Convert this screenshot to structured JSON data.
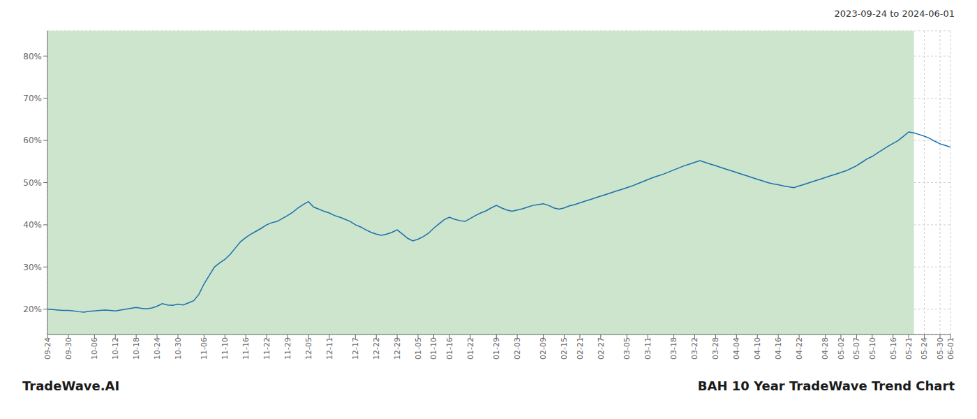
{
  "chart_data": {
    "type": "line",
    "title": "BAH 10 Year TradeWave Trend Chart",
    "subtitle": "2023-09-24 to 2024-06-01",
    "annotations": [
      "TradeWave.AI"
    ],
    "color": "#1a6faf",
    "grid": true,
    "shaded_region": {
      "start": 0,
      "end": 166,
      "color": "#cce5cc"
    },
    "ylim": [
      0.14,
      0.86
    ],
    "yticks": [
      {
        "value": 0.2,
        "label": "20%"
      },
      {
        "value": 0.3,
        "label": "30%"
      },
      {
        "value": 0.4,
        "label": "40%"
      },
      {
        "value": 0.5,
        "label": "50%"
      },
      {
        "value": 0.6,
        "label": "60%"
      },
      {
        "value": 0.7,
        "label": "70%"
      },
      {
        "value": 0.8,
        "label": "80%"
      }
    ],
    "categories": [
      "09-24",
      null,
      null,
      null,
      "09-30",
      null,
      null,
      null,
      null,
      "10-06",
      null,
      null,
      null,
      "10-12",
      null,
      null,
      null,
      "10-18",
      null,
      null,
      null,
      "10-24",
      null,
      null,
      null,
      "10-30",
      null,
      null,
      null,
      null,
      "11-06",
      null,
      null,
      null,
      "11-10",
      null,
      null,
      null,
      "11-16",
      null,
      null,
      null,
      "11-22",
      null,
      null,
      null,
      "11-29",
      null,
      null,
      null,
      "12-05",
      null,
      null,
      null,
      "12-11",
      null,
      null,
      null,
      null,
      "12-17",
      null,
      null,
      null,
      "12-22",
      null,
      null,
      null,
      "12-29",
      null,
      null,
      null,
      "01-05",
      null,
      null,
      "01-10",
      null,
      null,
      "01-16",
      null,
      null,
      null,
      "01-22",
      null,
      null,
      null,
      null,
      "01-29",
      null,
      null,
      null,
      "02-03",
      null,
      null,
      null,
      null,
      "02-09",
      null,
      null,
      null,
      "02-15",
      null,
      null,
      "02-21",
      null,
      null,
      null,
      "02-27",
      null,
      null,
      null,
      null,
      "03-05",
      null,
      null,
      null,
      "03-11",
      null,
      null,
      null,
      null,
      "03-18",
      null,
      null,
      null,
      "03-22",
      null,
      null,
      null,
      "03-28",
      null,
      null,
      null,
      "04-04",
      null,
      null,
      null,
      "04-10",
      null,
      null,
      null,
      "04-16",
      null,
      null,
      null,
      "04-22",
      null,
      null,
      null,
      null,
      "04-28",
      null,
      null,
      "05-02",
      null,
      null,
      "05-07",
      null,
      null,
      "05-10",
      null,
      null,
      null,
      "05-16",
      null,
      null,
      "05-21",
      null,
      null,
      "05-24",
      null,
      null,
      "05-30",
      null,
      "06-01"
    ],
    "values": [
      0.2,
      0.199,
      0.198,
      0.197,
      0.197,
      0.196,
      0.194,
      0.193,
      0.195,
      0.196,
      0.197,
      0.198,
      0.197,
      0.196,
      0.198,
      0.2,
      0.202,
      0.204,
      0.202,
      0.201,
      0.203,
      0.207,
      0.213,
      0.21,
      0.209,
      0.212,
      0.21,
      0.215,
      0.22,
      0.235,
      0.26,
      0.28,
      0.3,
      0.31,
      0.318,
      0.33,
      0.345,
      0.36,
      0.37,
      0.378,
      0.385,
      0.392,
      0.4,
      0.405,
      0.408,
      0.415,
      0.422,
      0.43,
      0.44,
      0.448,
      0.455,
      0.442,
      0.437,
      0.432,
      0.428,
      0.422,
      0.418,
      0.413,
      0.408,
      0.4,
      0.395,
      0.388,
      0.382,
      0.378,
      0.375,
      0.378,
      0.382,
      0.388,
      0.378,
      0.368,
      0.362,
      0.366,
      0.372,
      0.38,
      0.392,
      0.402,
      0.412,
      0.418,
      0.413,
      0.41,
      0.408,
      0.415,
      0.422,
      0.428,
      0.433,
      0.44,
      0.446,
      0.44,
      0.435,
      0.432,
      0.435,
      0.438,
      0.442,
      0.446,
      0.448,
      0.45,
      0.446,
      0.44,
      0.437,
      0.44,
      0.445,
      0.448,
      0.452,
      0.456,
      0.46,
      0.464,
      0.468,
      0.472,
      0.476,
      0.48,
      0.484,
      0.488,
      0.492,
      0.497,
      0.502,
      0.507,
      0.512,
      0.516,
      0.52,
      0.525,
      0.53,
      0.535,
      0.54,
      0.544,
      0.548,
      0.552,
      0.548,
      0.544,
      0.54,
      0.536,
      0.532,
      0.528,
      0.524,
      0.52,
      0.516,
      0.512,
      0.508,
      0.504,
      0.5,
      0.497,
      0.495,
      0.492,
      0.49,
      0.488,
      0.492,
      0.496,
      0.5,
      0.504,
      0.508,
      0.512,
      0.516,
      0.52,
      0.524,
      0.528,
      0.534,
      0.54,
      0.548,
      0.556,
      0.562,
      0.57,
      0.578,
      0.586,
      0.593,
      0.6,
      0.61,
      0.62,
      0.618,
      0.614,
      0.61,
      0.605,
      0.598,
      0.592,
      0.588,
      0.584
    ]
  }
}
